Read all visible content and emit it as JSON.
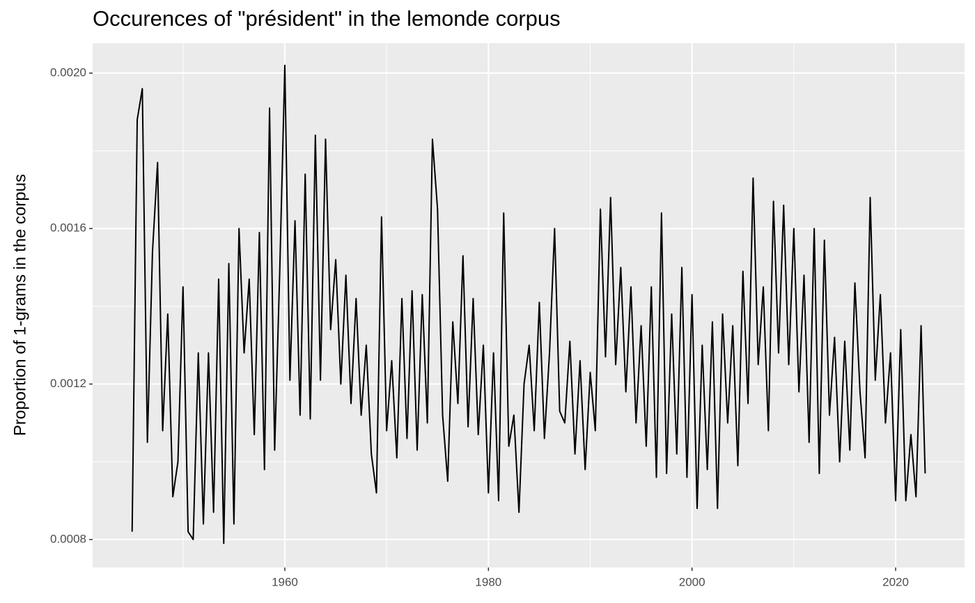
{
  "chart_data": {
    "type": "line",
    "title": "Occurences of \"président\" in the lemonde corpus",
    "y_label": "Proportion of 1-grams in the corpus",
    "color": "#000000",
    "grid": true,
    "xlim": [
      1941.12,
      2026.77
    ],
    "ylim": [
      0.000728,
      0.002077
    ],
    "xticks": [
      1960,
      1980,
      2000,
      2020
    ],
    "yticks": [
      {
        "value": 0.0008,
        "label": "0.0008"
      },
      {
        "value": 0.0012,
        "label": "0.0012"
      },
      {
        "value": 0.0016,
        "label": "0.0016"
      },
      {
        "value": 0.002,
        "label": "0.0020"
      }
    ],
    "xminor": [
      1950,
      1970,
      1990,
      2010
    ],
    "yminor": [
      0.001,
      0.0014,
      0.0018
    ],
    "x": [
      1945.0,
      1945.5,
      1946.0,
      1946.5,
      1947.0,
      1947.5,
      1948.0,
      1948.5,
      1949.0,
      1949.5,
      1950.0,
      1950.5,
      1951.0,
      1951.5,
      1952.0,
      1952.5,
      1953.0,
      1953.5,
      1954.0,
      1954.5,
      1955.0,
      1955.5,
      1956.0,
      1956.5,
      1957.0,
      1957.5,
      1958.0,
      1958.5,
      1959.0,
      1959.5,
      1960.0,
      1960.5,
      1961.0,
      1961.5,
      1962.0,
      1962.5,
      1963.0,
      1963.5,
      1964.0,
      1964.5,
      1965.0,
      1965.5,
      1966.0,
      1966.5,
      1967.0,
      1967.5,
      1968.0,
      1968.5,
      1969.0,
      1969.5,
      1970.0,
      1970.5,
      1971.0,
      1971.5,
      1972.0,
      1972.5,
      1973.0,
      1973.5,
      1974.0,
      1974.5,
      1975.0,
      1975.5,
      1976.0,
      1976.5,
      1977.0,
      1977.5,
      1978.0,
      1978.5,
      1979.0,
      1979.5,
      1980.0,
      1980.5,
      1981.0,
      1981.5,
      1982.0,
      1982.5,
      1983.0,
      1983.5,
      1984.0,
      1984.5,
      1985.0,
      1985.5,
      1986.0,
      1986.5,
      1987.0,
      1987.5,
      1988.0,
      1988.5,
      1989.0,
      1989.5,
      1990.0,
      1990.5,
      1991.0,
      1991.5,
      1992.0,
      1992.5,
      1993.0,
      1993.5,
      1994.0,
      1994.5,
      1995.0,
      1995.5,
      1996.0,
      1996.5,
      1997.0,
      1997.5,
      1998.0,
      1998.5,
      1999.0,
      1999.5,
      2000.0,
      2000.5,
      2001.0,
      2001.5,
      2002.0,
      2002.5,
      2003.0,
      2003.5,
      2004.0,
      2004.5,
      2005.0,
      2005.5,
      2006.0,
      2006.5,
      2007.0,
      2007.5,
      2008.0,
      2008.5,
      2009.0,
      2009.5,
      2010.0,
      2010.5,
      2011.0,
      2011.5,
      2012.0,
      2012.5,
      2013.0,
      2013.5,
      2014.0,
      2014.5,
      2015.0,
      2015.5,
      2016.0,
      2016.5,
      2017.0,
      2017.5,
      2018.0,
      2018.5,
      2019.0,
      2019.5,
      2020.0,
      2020.5,
      2021.0,
      2021.5,
      2022.0,
      2022.5,
      2022.9
    ],
    "values": [
      0.00082,
      0.00188,
      0.00196,
      0.00105,
      0.00154,
      0.00177,
      0.00108,
      0.00138,
      0.00091,
      0.001,
      0.00145,
      0.00082,
      0.0008,
      0.00128,
      0.00084,
      0.00128,
      0.00087,
      0.00147,
      0.00079,
      0.00151,
      0.00084,
      0.0016,
      0.00128,
      0.00147,
      0.00107,
      0.00159,
      0.00098,
      0.00191,
      0.00103,
      0.00149,
      0.00202,
      0.00121,
      0.00162,
      0.00112,
      0.00174,
      0.00111,
      0.00184,
      0.00121,
      0.00183,
      0.00134,
      0.00152,
      0.0012,
      0.00148,
      0.00115,
      0.00142,
      0.00112,
      0.0013,
      0.00102,
      0.00092,
      0.00163,
      0.00108,
      0.00126,
      0.00101,
      0.00142,
      0.00106,
      0.00144,
      0.00103,
      0.00143,
      0.0011,
      0.00183,
      0.00165,
      0.00112,
      0.00095,
      0.00136,
      0.00115,
      0.00153,
      0.00109,
      0.00142,
      0.00107,
      0.0013,
      0.00092,
      0.00128,
      0.0009,
      0.00164,
      0.00104,
      0.00112,
      0.00087,
      0.0012,
      0.0013,
      0.00108,
      0.00141,
      0.00106,
      0.00128,
      0.0016,
      0.00113,
      0.0011,
      0.00131,
      0.00102,
      0.00126,
      0.00098,
      0.00123,
      0.00108,
      0.00165,
      0.00127,
      0.00168,
      0.00125,
      0.0015,
      0.00118,
      0.00145,
      0.0011,
      0.00135,
      0.00104,
      0.00145,
      0.00096,
      0.00164,
      0.00097,
      0.00138,
      0.00102,
      0.0015,
      0.00096,
      0.00143,
      0.00088,
      0.0013,
      0.00098,
      0.00136,
      0.00088,
      0.00138,
      0.0011,
      0.00135,
      0.00099,
      0.00149,
      0.00115,
      0.00173,
      0.00125,
      0.00145,
      0.00108,
      0.00167,
      0.00128,
      0.00166,
      0.00125,
      0.0016,
      0.00118,
      0.00148,
      0.00105,
      0.0016,
      0.00097,
      0.00157,
      0.00112,
      0.00132,
      0.001,
      0.00131,
      0.00103,
      0.00146,
      0.00118,
      0.00101,
      0.00168,
      0.00121,
      0.00143,
      0.0011,
      0.00128,
      0.0009,
      0.00134,
      0.0009,
      0.00107,
      0.00091,
      0.00135,
      0.00097
    ]
  }
}
